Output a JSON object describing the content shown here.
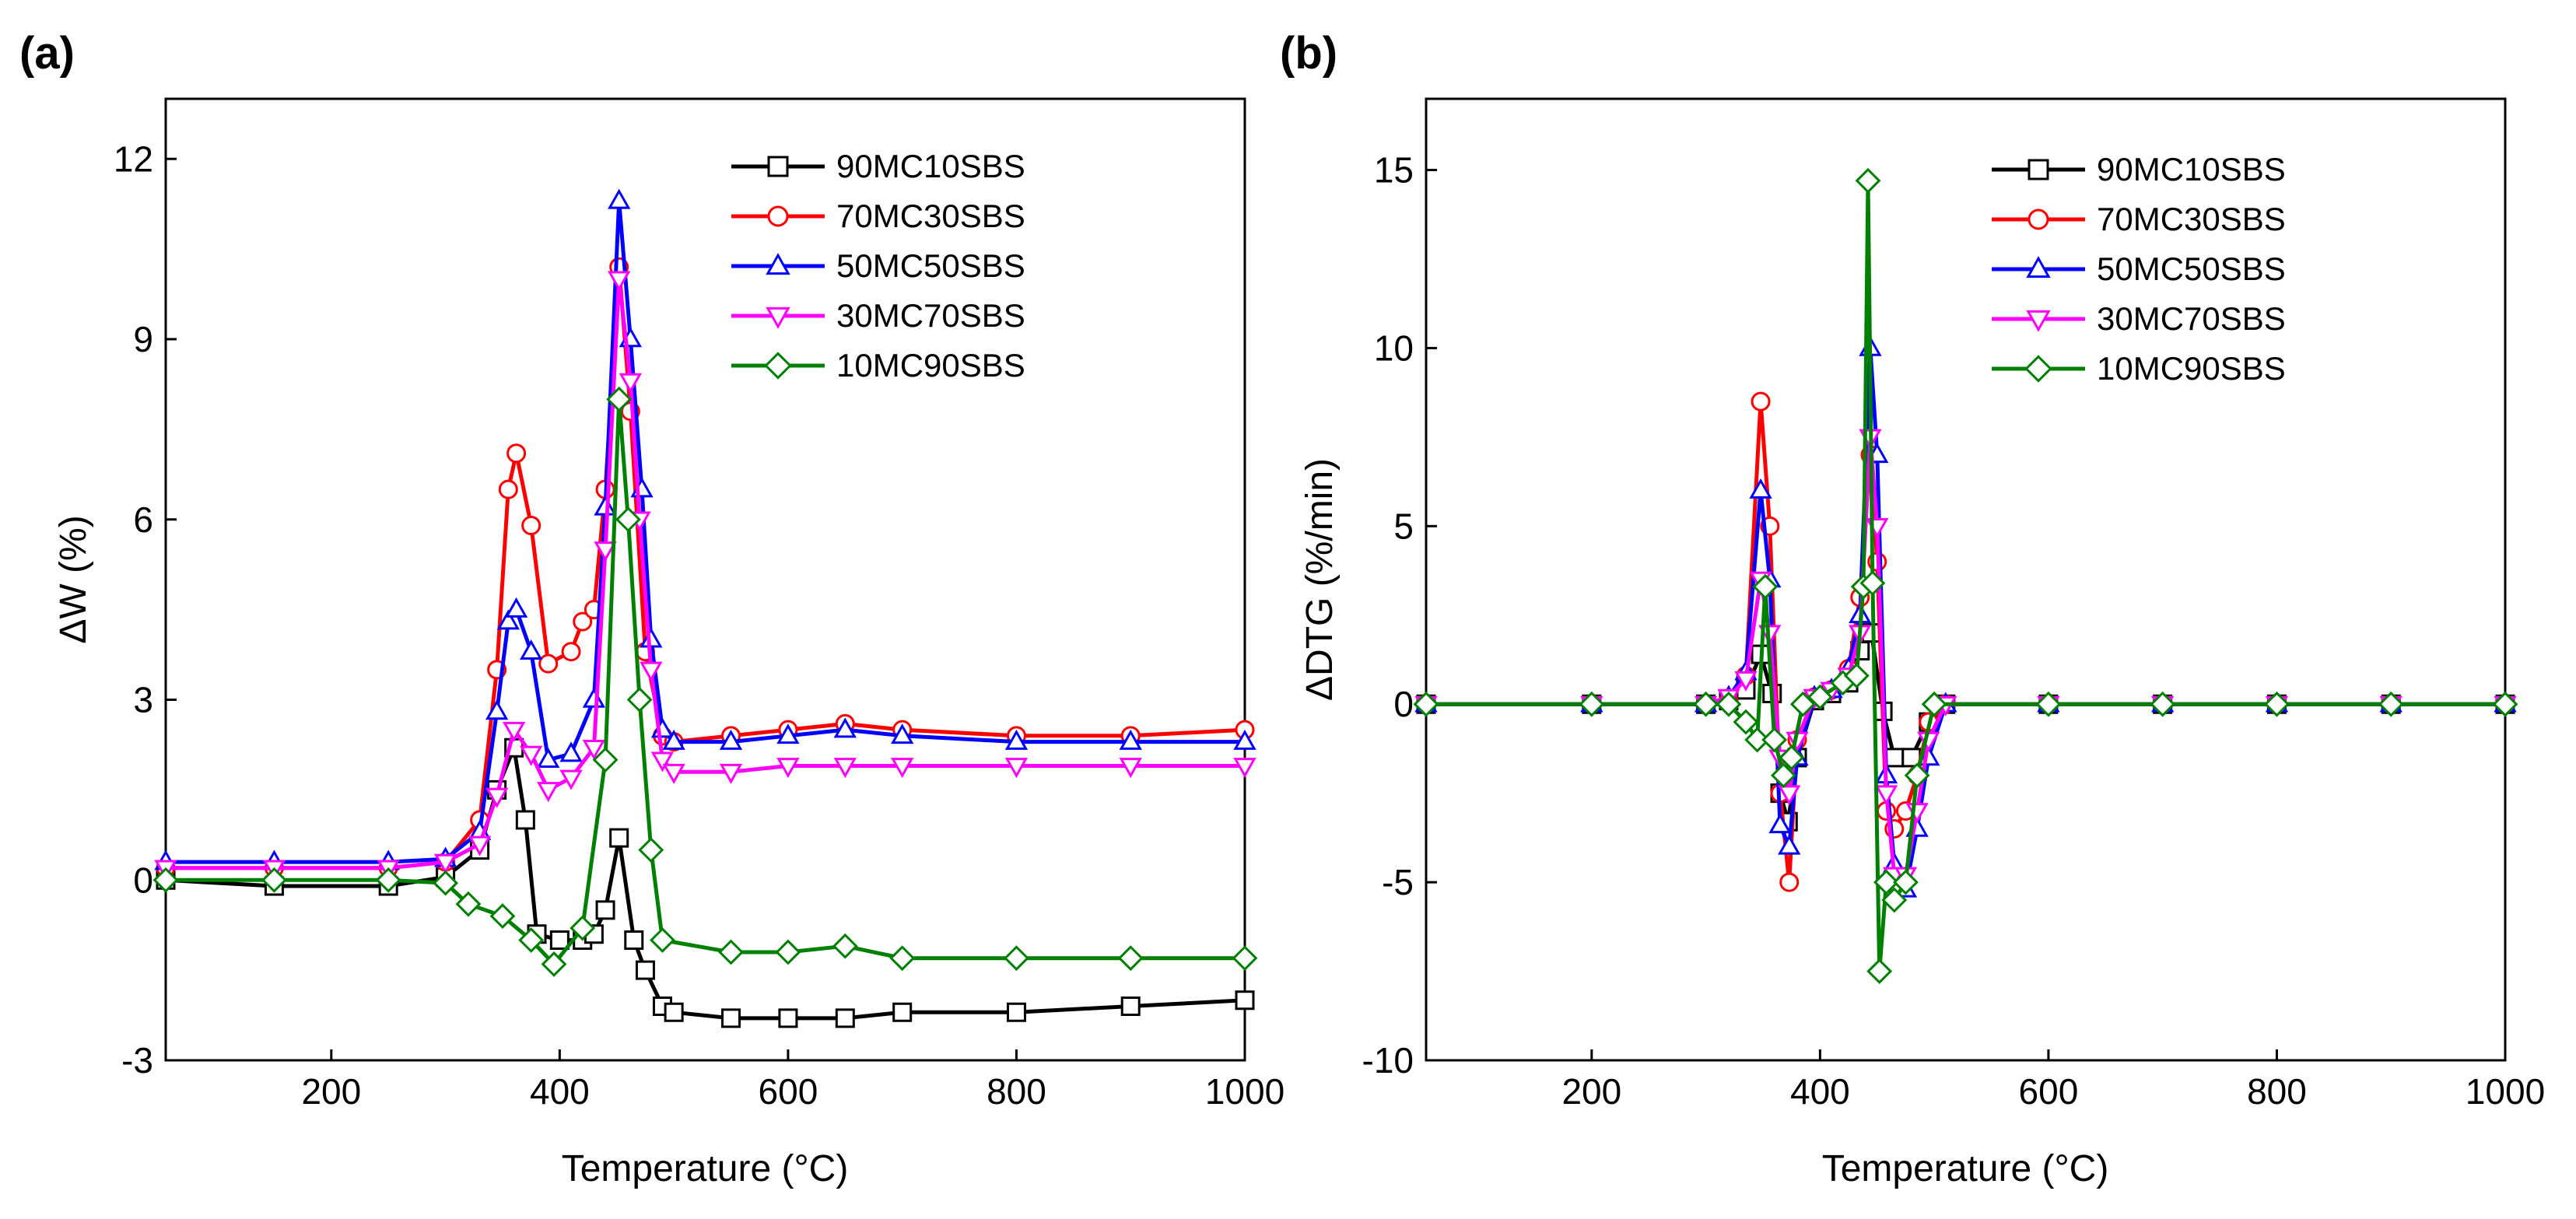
{
  "panels": [
    {
      "letter": "(a)"
    },
    {
      "letter": "(b)"
    }
  ],
  "chart_data": [
    {
      "type": "line",
      "panel": "(a)",
      "title": "",
      "xlabel": "Temperature (°C)",
      "ylabel": "ΔW (%)",
      "xlim": [
        55,
        1000
      ],
      "ylim": [
        -3,
        13
      ],
      "xticks": [
        200,
        400,
        600,
        800,
        1000
      ],
      "yticks": [
        -3,
        0,
        3,
        6,
        9,
        12
      ],
      "legend_position": "top-right",
      "grid": false,
      "series": [
        {
          "name": "90MC10SBS",
          "color": "#000000",
          "marker": "square",
          "x": [
            55,
            150,
            250,
            300,
            330,
            345,
            360,
            370,
            380,
            400,
            420,
            430,
            440,
            452,
            465,
            475,
            490,
            500,
            550,
            600,
            650,
            700,
            800,
            900,
            1000
          ],
          "y": [
            0,
            -0.1,
            -0.1,
            0.05,
            0.5,
            1.5,
            2.2,
            1.0,
            -0.9,
            -1.0,
            -1.0,
            -0.9,
            -0.5,
            0.7,
            -1.0,
            -1.5,
            -2.1,
            -2.2,
            -2.3,
            -2.3,
            -2.3,
            -2.2,
            -2.2,
            -2.1,
            -2.0
          ]
        },
        {
          "name": "70MC30SBS",
          "color": "#ff0000",
          "marker": "circle",
          "x": [
            55,
            150,
            250,
            300,
            330,
            345,
            355,
            362,
            375,
            390,
            410,
            420,
            430,
            440,
            452,
            462,
            475,
            490,
            500,
            550,
            600,
            650,
            700,
            800,
            900,
            1000
          ],
          "y": [
            0.2,
            0.2,
            0.2,
            0.3,
            1.0,
            3.5,
            6.5,
            7.1,
            5.9,
            3.6,
            3.8,
            4.3,
            4.5,
            6.5,
            10.2,
            7.8,
            3.8,
            2.4,
            2.3,
            2.4,
            2.5,
            2.6,
            2.5,
            2.4,
            2.4,
            2.5
          ]
        },
        {
          "name": "50MC50SBS",
          "color": "#0000ff",
          "marker": "triangle-up",
          "x": [
            55,
            150,
            250,
            300,
            330,
            345,
            355,
            362,
            375,
            390,
            410,
            430,
            440,
            452,
            462,
            472,
            480,
            490,
            500,
            550,
            600,
            650,
            700,
            800,
            900,
            1000
          ],
          "y": [
            0.3,
            0.3,
            0.3,
            0.35,
            0.8,
            2.8,
            4.3,
            4.5,
            3.8,
            2.0,
            2.1,
            3.0,
            6.2,
            11.3,
            9.0,
            6.5,
            4.0,
            2.5,
            2.3,
            2.3,
            2.4,
            2.5,
            2.4,
            2.3,
            2.3,
            2.3
          ]
        },
        {
          "name": "30MC70SBS",
          "color": "#ff00ff",
          "marker": "triangle-down",
          "x": [
            55,
            150,
            250,
            300,
            330,
            345,
            360,
            375,
            390,
            410,
            430,
            440,
            452,
            462,
            470,
            480,
            490,
            500,
            550,
            600,
            650,
            700,
            800,
            900,
            1000
          ],
          "y": [
            0.2,
            0.2,
            0.2,
            0.3,
            0.6,
            1.4,
            2.5,
            2.1,
            1.5,
            1.7,
            2.2,
            5.5,
            10.0,
            8.3,
            6.0,
            3.5,
            2.0,
            1.8,
            1.8,
            1.9,
            1.9,
            1.9,
            1.9,
            1.9,
            1.9
          ]
        },
        {
          "name": "10MC90SBS",
          "color": "#008000",
          "marker": "diamond",
          "x": [
            55,
            150,
            250,
            300,
            320,
            350,
            375,
            395,
            420,
            440,
            452,
            460,
            470,
            480,
            490,
            550,
            600,
            650,
            700,
            800,
            900,
            1000
          ],
          "y": [
            0,
            0,
            0,
            -0.05,
            -0.4,
            -0.6,
            -1.0,
            -1.4,
            -0.8,
            2.0,
            8.0,
            6.0,
            3.0,
            0.5,
            -1.0,
            -1.2,
            -1.2,
            -1.1,
            -1.3,
            -1.3,
            -1.3,
            -1.3
          ]
        }
      ]
    },
    {
      "type": "line",
      "panel": "(b)",
      "title": "",
      "xlabel": "Temperature (°C)",
      "ylabel": "ΔDTG (%/min)",
      "xlim": [
        55,
        1000
      ],
      "ylim": [
        -10,
        17
      ],
      "xticks": [
        200,
        400,
        600,
        800,
        1000
      ],
      "yticks": [
        -10,
        -5,
        0,
        5,
        10,
        15
      ],
      "legend_position": "top-right",
      "grid": false,
      "series": [
        {
          "name": "90MC10SBS",
          "color": "#000000",
          "marker": "square",
          "x": [
            55,
            200,
            300,
            320,
            335,
            348,
            358,
            365,
            372,
            380,
            395,
            410,
            425,
            435,
            445,
            455,
            465,
            480,
            495,
            510,
            600,
            700,
            800,
            900,
            1000
          ],
          "y": [
            0,
            0,
            0,
            0.1,
            0.4,
            1.4,
            0.3,
            -2.5,
            -3.3,
            -1.5,
            0.1,
            0.3,
            0.6,
            1.5,
            2.0,
            -0.2,
            -1.5,
            -1.5,
            -0.5,
            0,
            0,
            0,
            0,
            0,
            0
          ]
        },
        {
          "name": "70MC30SBS",
          "color": "#ff0000",
          "marker": "circle",
          "x": [
            55,
            200,
            300,
            320,
            335,
            348,
            356,
            365,
            373,
            380,
            395,
            410,
            425,
            435,
            444,
            450,
            458,
            465,
            475,
            485,
            495,
            510,
            600,
            700,
            800,
            900,
            1000
          ],
          "y": [
            0,
            0,
            0,
            0.1,
            0.8,
            8.5,
            5.0,
            -2.5,
            -5.0,
            -1.0,
            0.2,
            0.4,
            1.0,
            3.0,
            7.0,
            4.0,
            -3.0,
            -3.5,
            -3.0,
            -2.0,
            -0.5,
            0,
            0,
            0,
            0,
            0,
            0
          ]
        },
        {
          "name": "50MC50SBS",
          "color": "#0000ff",
          "marker": "triangle-up",
          "x": [
            55,
            200,
            300,
            320,
            335,
            348,
            356,
            365,
            373,
            380,
            395,
            410,
            425,
            435,
            444,
            450,
            458,
            465,
            475,
            485,
            495,
            510,
            600,
            700,
            800,
            900,
            1000
          ],
          "y": [
            0,
            0,
            0,
            0.2,
            0.9,
            6.0,
            3.5,
            -3.4,
            -4.0,
            -1.5,
            0.2,
            0.4,
            1.0,
            2.5,
            10.0,
            7.0,
            -2.0,
            -4.5,
            -5.2,
            -3.5,
            -1.5,
            0,
            0,
            0,
            0,
            0,
            0
          ]
        },
        {
          "name": "30MC70SBS",
          "color": "#ff00ff",
          "marker": "triangle-down",
          "x": [
            55,
            200,
            300,
            320,
            335,
            348,
            356,
            365,
            373,
            380,
            395,
            410,
            425,
            435,
            444,
            450,
            458,
            465,
            475,
            485,
            495,
            510,
            600,
            700,
            800,
            900,
            1000
          ],
          "y": [
            0,
            0,
            0,
            0.2,
            0.7,
            3.5,
            2.0,
            -1.5,
            -2.5,
            -1.0,
            0.2,
            0.4,
            0.8,
            2.0,
            7.5,
            5.0,
            -2.5,
            -4.8,
            -4.8,
            -3.0,
            -1.0,
            0,
            0,
            0,
            0,
            0,
            0
          ]
        },
        {
          "name": "10MC90SBS",
          "color": "#008000",
          "marker": "diamond",
          "x": [
            55,
            200,
            300,
            320,
            335,
            345,
            352,
            360,
            368,
            375,
            385,
            400,
            420,
            432,
            438,
            442,
            446,
            452,
            458,
            465,
            475,
            485,
            500,
            600,
            700,
            800,
            900,
            1000
          ],
          "y": [
            0,
            0,
            0,
            0,
            -0.5,
            -1.0,
            3.3,
            -1.0,
            -2.0,
            -1.5,
            0,
            0.2,
            0.6,
            0.8,
            3.3,
            14.7,
            3.4,
            -7.5,
            -5.0,
            -5.5,
            -5.0,
            -2.0,
            0,
            0,
            0,
            0,
            0,
            0
          ]
        }
      ]
    }
  ]
}
